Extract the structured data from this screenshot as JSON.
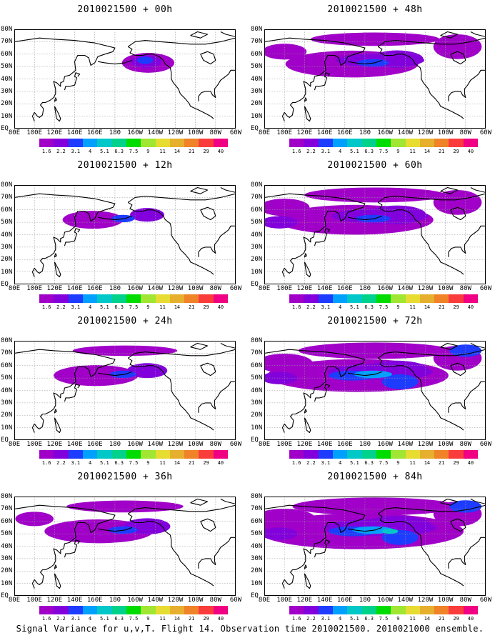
{
  "panels": [
    {
      "title": "2010021500 + 00h",
      "level": 0
    },
    {
      "title": "2010021500 + 48h",
      "level": 4
    },
    {
      "title": "2010021500 + 12h",
      "level": 1
    },
    {
      "title": "2010021500 + 60h",
      "level": 5
    },
    {
      "title": "2010021500 + 24h",
      "level": 2
    },
    {
      "title": "2010021500 + 72h",
      "level": 6
    },
    {
      "title": "2010021500 + 36h",
      "level": 3
    },
    {
      "title": "2010021500 + 84h",
      "level": 7
    }
  ],
  "lat_labels": [
    "80N",
    "70N",
    "60N",
    "50N",
    "40N",
    "30N",
    "20N",
    "10N",
    "EQ"
  ],
  "lon_labels": [
    "80E",
    "100E",
    "120E",
    "140E",
    "160E",
    "180",
    "160W",
    "140W",
    "120W",
    "100W",
    "80W",
    "60W"
  ],
  "colorbar": {
    "labels": [
      "1.6",
      "2.2",
      "3.1",
      "4",
      "5.1",
      "6.3",
      "7.5",
      "9",
      "11",
      "14",
      "21",
      "29",
      "40"
    ],
    "colors": [
      "#a000c8",
      "#8200dc",
      "#1e3cff",
      "#00a0ff",
      "#00c8c8",
      "#00d28c",
      "#00dc00",
      "#a0e632",
      "#e6dc32",
      "#e6af2d",
      "#f08228",
      "#fa3c3c",
      "#f00082"
    ]
  },
  "footer": "Signal Variance for u,v,T. Flight 14. Observation time 2010021500. 2010021000 ensemble."
}
